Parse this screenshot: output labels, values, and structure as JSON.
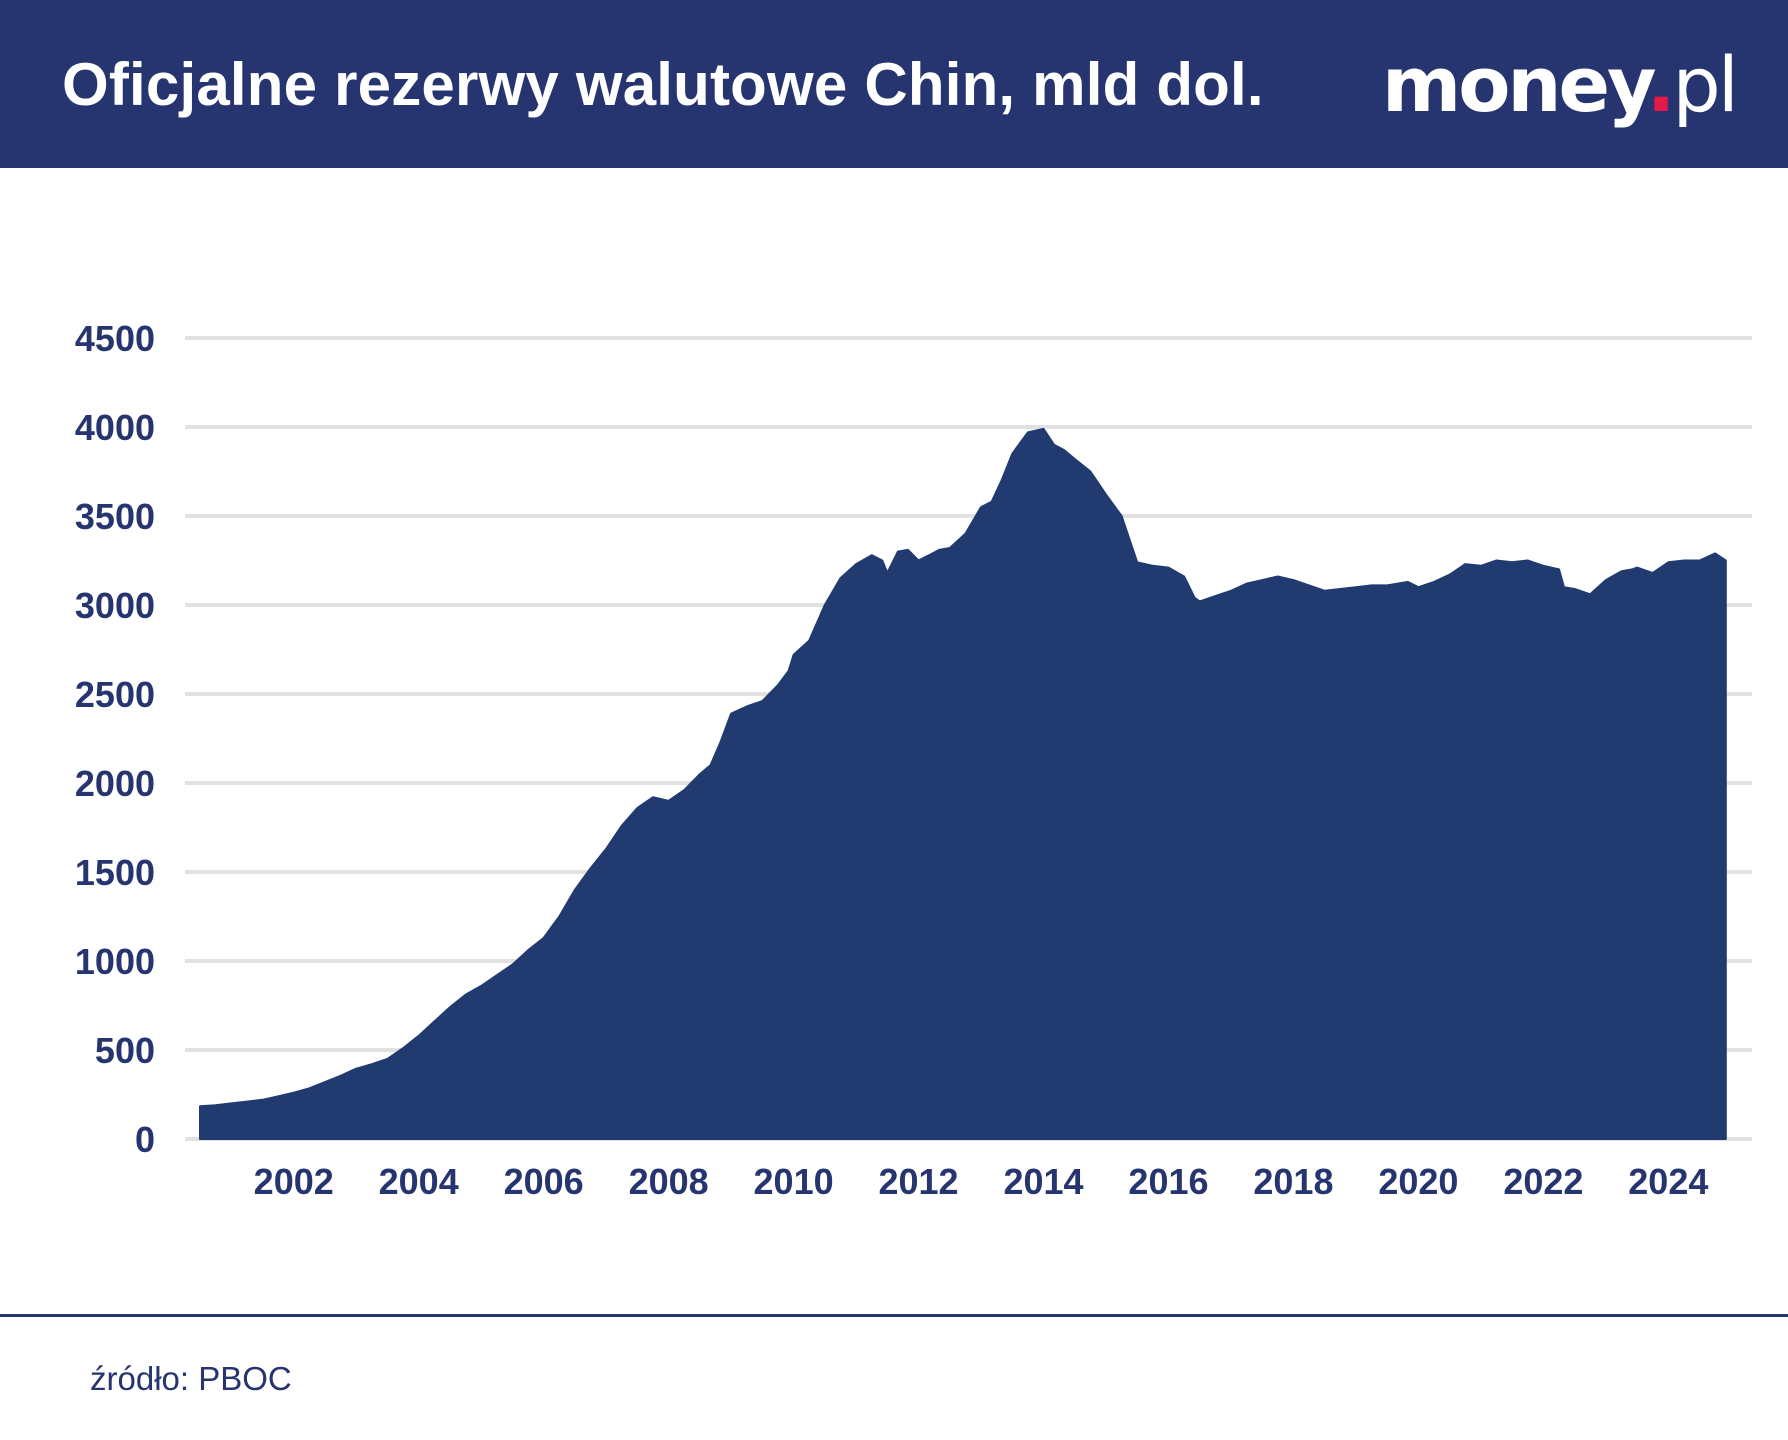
{
  "header": {
    "title": "Oficjalne rezerwy walutowe Chin, mld dol.",
    "logo_main": "money",
    "logo_dot": ".",
    "logo_suffix": "pl"
  },
  "colors": {
    "header_bg": "#263470",
    "area_fill": "#213b70",
    "grid": "#e1e1e1",
    "tick_text": "#263470",
    "logo_dot": "#e6194b"
  },
  "chart_data": {
    "type": "area",
    "title": "Oficjalne rezerwy walutowe Chin, mld dol.",
    "xlabel": "",
    "ylabel": "",
    "ylim": [
      0,
      4500
    ],
    "xlim": [
      2001.0,
      2025.583
    ],
    "yticks": [
      0,
      500,
      1000,
      1500,
      2000,
      2500,
      3000,
      3500,
      4000,
      4500
    ],
    "xticks": [
      2002,
      2004,
      2006,
      2008,
      2010,
      2012,
      2014,
      2016,
      2018,
      2020,
      2022,
      2024
    ],
    "grid": true,
    "legend": "none",
    "series": [
      {
        "x": [
          2001.0,
          2001.25,
          2001.5,
          2001.75,
          2002.0,
          2002.25,
          2002.5,
          2002.75,
          2003.0,
          2003.25,
          2003.5,
          2003.75,
          2004.0,
          2004.25,
          2004.5,
          2004.75,
          2005.0,
          2005.25,
          2005.5,
          2005.75,
          2006.0,
          2006.25,
          2006.5,
          2006.75,
          2007.0,
          2007.25,
          2007.5,
          2007.75,
          2008.0,
          2008.25,
          2008.5,
          2008.75,
          2009.0,
          2009.17,
          2009.33,
          2009.5,
          2009.75,
          2010.0,
          2010.25,
          2010.42,
          2010.5,
          2010.75,
          2011.0,
          2011.25,
          2011.5,
          2011.75,
          2011.92,
          2012.0,
          2012.17,
          2012.33,
          2012.5,
          2012.67,
          2012.83,
          2013.0,
          2013.25,
          2013.5,
          2013.67,
          2013.83,
          2014.0,
          2014.25,
          2014.5,
          2014.67,
          2014.83,
          2015.0,
          2015.25,
          2015.5,
          2015.75,
          2016.0,
          2016.25,
          2016.5,
          2016.75,
          2016.92,
          2017.0,
          2017.25,
          2017.5,
          2017.75,
          2018.0,
          2018.25,
          2018.5,
          2018.75,
          2019.0,
          2019.25,
          2019.5,
          2019.75,
          2020.0,
          2020.17,
          2020.33,
          2020.5,
          2020.75,
          2021.0,
          2021.25,
          2021.5,
          2021.75,
          2022.0,
          2022.25,
          2022.5,
          2022.75,
          2022.83,
          2023.0,
          2023.25,
          2023.5,
          2023.75,
          2023.92,
          2024.0,
          2024.25,
          2024.5,
          2024.75,
          2025.0,
          2025.25,
          2025.42
        ],
        "values": [
          184,
          190,
          200,
          210,
          220,
          240,
          260,
          285,
          320,
          355,
          395,
          420,
          450,
          510,
          580,
          660,
          740,
          810,
          860,
          920,
          980,
          1060,
          1130,
          1250,
          1400,
          1520,
          1630,
          1760,
          1860,
          1920,
          1900,
          1960,
          2050,
          2100,
          2230,
          2390,
          2430,
          2460,
          2550,
          2630,
          2720,
          2800,
          3000,
          3150,
          3230,
          3280,
          3250,
          3180,
          3300,
          3310,
          3250,
          3280,
          3310,
          3320,
          3400,
          3550,
          3580,
          3700,
          3850,
          3970,
          3990,
          3900,
          3870,
          3820,
          3750,
          3620,
          3500,
          3240,
          3220,
          3210,
          3160,
          3040,
          3020,
          3050,
          3080,
          3120,
          3140,
          3160,
          3140,
          3110,
          3080,
          3090,
          3100,
          3110,
          3110,
          3120,
          3130,
          3100,
          3130,
          3170,
          3230,
          3220,
          3250,
          3240,
          3250,
          3220,
          3200,
          3100,
          3090,
          3060,
          3140,
          3190,
          3200,
          3210,
          3180,
          3240,
          3250,
          3250,
          3290,
          3250
        ]
      }
    ]
  },
  "footer": {
    "source": "źródło: PBOC"
  }
}
